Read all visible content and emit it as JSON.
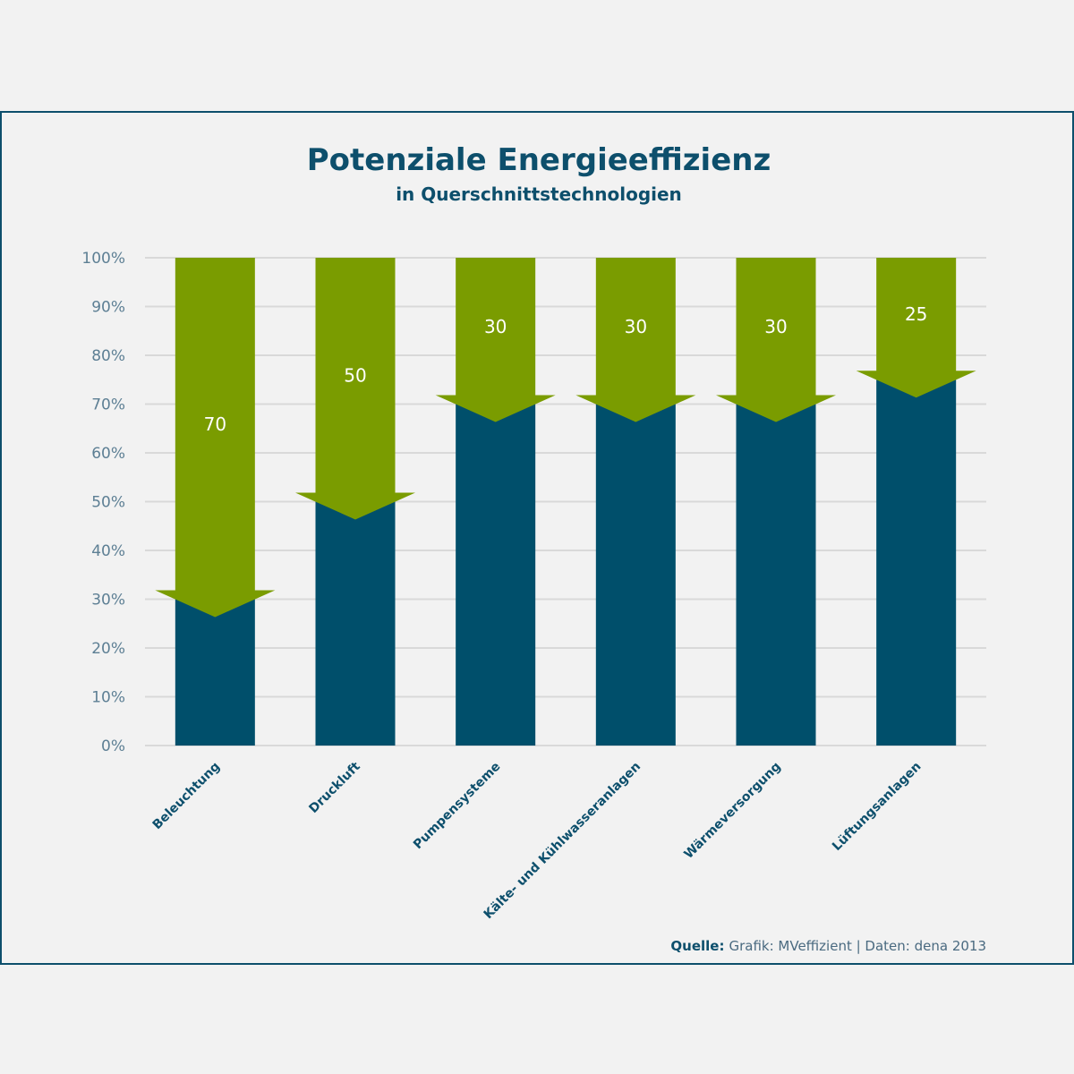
{
  "chart_data": {
    "type": "bar",
    "title": "Potenziale Energieeffizienz",
    "subtitle": "in Querschnittstechnologien",
    "categories": [
      "Beleuchtung",
      "Druckluft",
      "Pumpensysteme",
      "Kälte- und Kühlwasseranlagen",
      "Wärmeversorgung",
      "Lüftungsanlagen"
    ],
    "series": [
      {
        "values": [
          30,
          50,
          70,
          70,
          70,
          75
        ]
      },
      {
        "values": [
          70,
          50,
          30,
          30,
          30,
          25
        ]
      }
    ],
    "data_labels": [
      "70",
      "50",
      "30",
      "30",
      "30",
      "25"
    ],
    "stacked": true,
    "ylim": [
      0,
      100
    ],
    "yticks": [
      0,
      10,
      20,
      30,
      40,
      50,
      60,
      70,
      80,
      90,
      100
    ],
    "ytick_labels": [
      "0%",
      "10%",
      "20%",
      "30%",
      "40%",
      "50%",
      "60%",
      "70%",
      "80%",
      "90%",
      "100%"
    ],
    "grid": true,
    "colors": {
      "base": "#004f6b",
      "potential": "#7a9c00",
      "grid": "#d9d9d9",
      "title": "#0d4f6c"
    }
  },
  "source": {
    "label": "Quelle:",
    "text": "Grafik: MVeffizient | Daten: dena 2013"
  }
}
